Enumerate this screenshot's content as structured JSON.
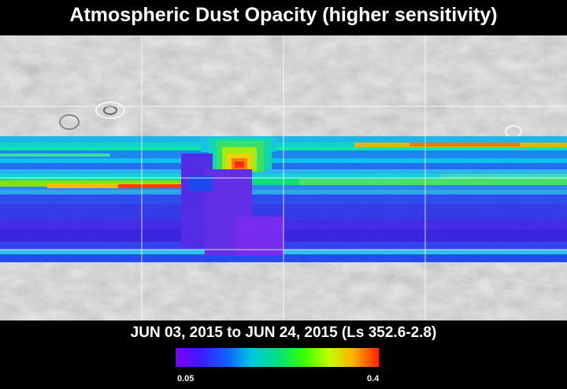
{
  "title": "Atmospheric Dust Opacity (higher sensitivity)",
  "date_range": "JUN 03, 2015 to JUN 24, 2015 (Ls 352.6-2.8)",
  "colorbar": {
    "min_label": "0.05",
    "max_label": "0.4",
    "min_value": 0.05,
    "max_value": 0.4,
    "stops": [
      "#7a00ff",
      "#3a1cff",
      "#1060ff",
      "#00c8e0",
      "#00e080",
      "#30ff00",
      "#c0ff00",
      "#ffb000",
      "#ff2000"
    ]
  },
  "map": {
    "background": "grayscale shaded relief of Mars",
    "grid": true
  }
}
